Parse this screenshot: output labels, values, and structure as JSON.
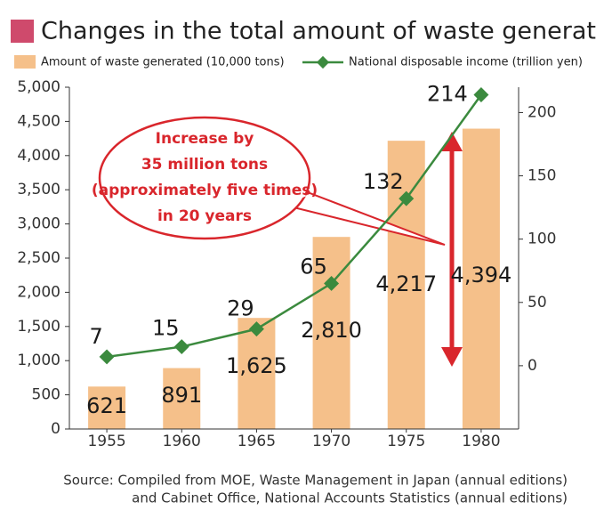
{
  "chart_data": {
    "type": "bar",
    "title": "Changes in the total amount of waste generated",
    "title_marker_color": "#cf4a6c",
    "categories": [
      "1955",
      "1960",
      "1965",
      "1970",
      "1975",
      "1980"
    ],
    "series": [
      {
        "name": "Amount of waste generated (10,000 tons)",
        "color": "#f5c08a",
        "values": [
          621,
          891,
          1625,
          2810,
          4217,
          4394
        ],
        "value_labels": [
          "621",
          "891",
          "1,625",
          "2,810",
          "4,217",
          "4,394"
        ]
      },
      {
        "name": "National disposable income (trillion yen)",
        "color": "#3b8a3e",
        "type": "line",
        "axis": "y2",
        "values": [
          7,
          15,
          29,
          65,
          132,
          214
        ]
      }
    ],
    "ylim": [
      0,
      5000
    ],
    "yticks": [
      0,
      {
        "value": 500,
        "label": "500"
      },
      {
        "value": 1000,
        "label": "1,000"
      },
      {
        "value": 1500,
        "label": "1,500"
      },
      {
        "value": 2000,
        "label": "2,000"
      },
      {
        "value": 2500,
        "label": "2,500"
      },
      {
        "value": 3000,
        "label": "3,000"
      },
      {
        "value": 3500,
        "label": "3,500"
      },
      {
        "value": 4000,
        "label": "4,000"
      },
      {
        "value": 4500,
        "label": "4,500"
      },
      {
        "value": 5000,
        "label": "5,000"
      }
    ],
    "y2lim": [
      -50,
      220
    ],
    "y2ticks": [
      0,
      50,
      100,
      150,
      200
    ],
    "annotation": [
      "Increase by",
      "35 million tons",
      "(approximately five times)",
      "in 20 years"
    ],
    "annotation_color": "#d9262c",
    "source": [
      "Source: Compiled from MOE, Waste Management in Japan (annual editions)",
      "and Cabinet Office, National Accounts Statistics (annual editions)"
    ]
  }
}
